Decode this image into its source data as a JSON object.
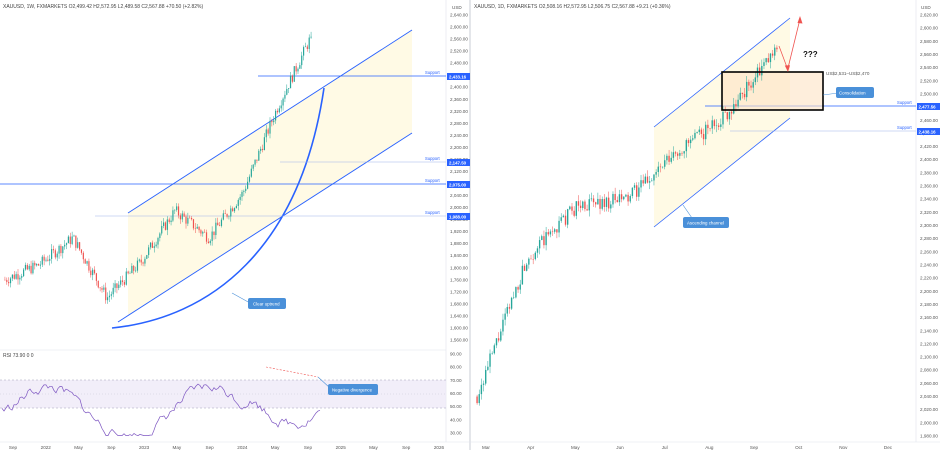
{
  "left_chart": {
    "header": "XAUUSD, 1W, FXMARKETS  O2,499.42  H2,572.95  L2,489.58  C2,567.88  +70.50 (+2.82%)",
    "y_axis_title": "USD",
    "y_ticks": [
      "2,640.00",
      "2,600.00",
      "2,560.00",
      "2,520.00",
      "2,480.00",
      "2,440.00",
      "2,400.00",
      "2,360.00",
      "2,320.00",
      "2,280.00",
      "2,240.00",
      "2,200.00",
      "2,160.00",
      "2,120.00",
      "2,080.00",
      "2,040.00",
      "2,000.00",
      "1,960.00",
      "1,920.00",
      "1,880.00",
      "1,840.00",
      "1,800.00",
      "1,760.00",
      "1,720.00",
      "1,680.00",
      "1,640.00",
      "1,600.00",
      "1,560.00"
    ],
    "x_ticks": [
      "Sep",
      "2022",
      "May",
      "Sep",
      "2023",
      "May",
      "Sep",
      "2024",
      "May",
      "Sep",
      "2025",
      "May",
      "Sep",
      "2026"
    ],
    "support_levels": [
      {
        "label": "Support",
        "value": "2,433.16"
      },
      {
        "label": "Support",
        "value": "2,147.50"
      },
      {
        "label": "Support",
        "value": "2,075.00"
      },
      {
        "label": "Support",
        "value": "1,988.00"
      }
    ],
    "callout_uptrend": "Clear uptrend",
    "rsi_header": "RSI  73.90  0  0",
    "rsi_ticks": [
      "90.00",
      "80.00",
      "70.00",
      "60.00",
      "50.00",
      "40.00",
      "30.00"
    ],
    "callout_divergence": "Negative divergence"
  },
  "right_chart": {
    "header": "XAUUSD, 1D, FXMARKETS  O2,508.16  H2,572.95  L2,506.75  C2,567.88  +9.21 (+0.36%)",
    "y_axis_title": "USD",
    "y_ticks": [
      "2,620.00",
      "2,600.00",
      "2,580.00",
      "2,560.00",
      "2,540.00",
      "2,520.00",
      "2,500.00",
      "2,480.00",
      "2,460.00",
      "2,440.00",
      "2,420.00",
      "2,400.00",
      "2,380.00",
      "2,360.00",
      "2,340.00",
      "2,320.00",
      "2,300.00",
      "2,280.00",
      "2,260.00",
      "2,240.00",
      "2,220.00",
      "2,200.00",
      "2,180.00",
      "2,160.00",
      "2,140.00",
      "2,120.00",
      "2,100.00",
      "2,080.00",
      "2,060.00",
      "2,040.00",
      "2,020.00",
      "2,000.00",
      "1,980.00"
    ],
    "x_ticks": [
      "Mar",
      "Apr",
      "May",
      "Jun",
      "Jul",
      "Aug",
      "Sep",
      "Oct",
      "Nov",
      "Dec"
    ],
    "support_levels": [
      {
        "label": "Support",
        "value": "2,477.56"
      },
      {
        "label": "Support",
        "value": "2,438.16"
      }
    ],
    "range_label": "US$2,531–US$2,470",
    "question_marks": "???",
    "callout_consolidation": "Consolidation",
    "callout_channel": "Ascending channel",
    "colors": {
      "bull": "#26a69a",
      "bear": "#ef5350",
      "accent": "#2962ff",
      "callout": "#4a90d9"
    }
  },
  "chart_data": [
    {
      "type": "line",
      "title": "XAUUSD, 1W, FXMARKETS",
      "xlabel": "",
      "ylabel": "USD",
      "ylim": [
        1560,
        2640
      ],
      "x": [
        "Sep 2021",
        "2022",
        "May 2022",
        "Sep 2022",
        "2023",
        "May 2023",
        "Sep 2023",
        "2024",
        "May 2024",
        "Sep 2024"
      ],
      "series": [
        {
          "values": [
            1760,
            1810,
            1900,
            1700,
            1820,
            1990,
            1900,
            2050,
            2330,
            2567.88
          ]
        }
      ],
      "support": [
        2433.16,
        2147.5,
        2075.0,
        1988.0
      ]
    },
    {
      "type": "line",
      "title": "XAUUSD, 1D, FXMARKETS",
      "xlabel": "",
      "ylabel": "USD",
      "ylim": [
        1980,
        2620
      ],
      "x": [
        "Mar",
        "Apr",
        "May",
        "Jun",
        "Jul",
        "Aug",
        "Sep"
      ],
      "series": [
        {
          "values": [
            2040,
            2250,
            2330,
            2340,
            2410,
            2470,
            2567.88
          ]
        }
      ],
      "support": [
        2477.56,
        2438.16
      ],
      "range": [
        2470,
        2531
      ]
    }
  ]
}
